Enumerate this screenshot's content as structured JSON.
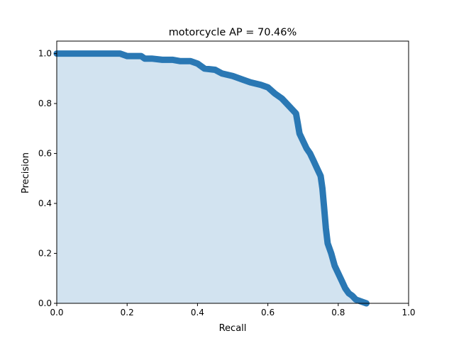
{
  "chart_data": {
    "type": "area",
    "title": "motorcycle AP = 70.46%",
    "xlabel": "Recall",
    "ylabel": "Precision",
    "xlim": [
      0,
      1
    ],
    "ylim": [
      0,
      1.05
    ],
    "xticks": [
      0.0,
      0.2,
      0.4,
      0.6,
      0.8,
      1.0
    ],
    "xtick_labels": [
      "0.0",
      "0.2",
      "0.4",
      "0.6",
      "0.8",
      "1.0"
    ],
    "yticks": [
      0.0,
      0.2,
      0.4,
      0.6,
      0.8,
      1.0
    ],
    "ytick_labels": [
      "0.0",
      "0.2",
      "0.4",
      "0.6",
      "0.8",
      "1.0"
    ],
    "grid": false,
    "legend": "none",
    "colors": {
      "line": "#2a78b4",
      "fill": "#d2e3f0"
    },
    "series": [
      {
        "x": [
          0.0,
          0.05,
          0.1,
          0.15,
          0.18,
          0.2,
          0.22,
          0.24,
          0.25,
          0.27,
          0.3,
          0.33,
          0.35,
          0.38,
          0.4,
          0.42,
          0.45,
          0.47,
          0.5,
          0.53,
          0.55,
          0.58,
          0.6,
          0.62,
          0.64,
          0.66,
          0.68,
          0.685,
          0.69,
          0.7,
          0.71,
          0.72,
          0.73,
          0.74,
          0.75,
          0.755,
          0.76,
          0.765,
          0.77,
          0.78,
          0.79,
          0.8,
          0.81,
          0.82,
          0.83,
          0.84,
          0.85,
          0.86,
          0.87,
          0.88
        ],
        "y": [
          1.0,
          1.0,
          1.0,
          1.0,
          1.0,
          0.99,
          0.99,
          0.99,
          0.98,
          0.98,
          0.975,
          0.975,
          0.97,
          0.97,
          0.96,
          0.94,
          0.935,
          0.92,
          0.91,
          0.895,
          0.885,
          0.875,
          0.865,
          0.84,
          0.82,
          0.79,
          0.76,
          0.72,
          0.68,
          0.65,
          0.62,
          0.6,
          0.57,
          0.54,
          0.51,
          0.46,
          0.38,
          0.3,
          0.24,
          0.2,
          0.15,
          0.12,
          0.09,
          0.06,
          0.04,
          0.03,
          0.015,
          0.01,
          0.005,
          0.0
        ]
      }
    ]
  }
}
